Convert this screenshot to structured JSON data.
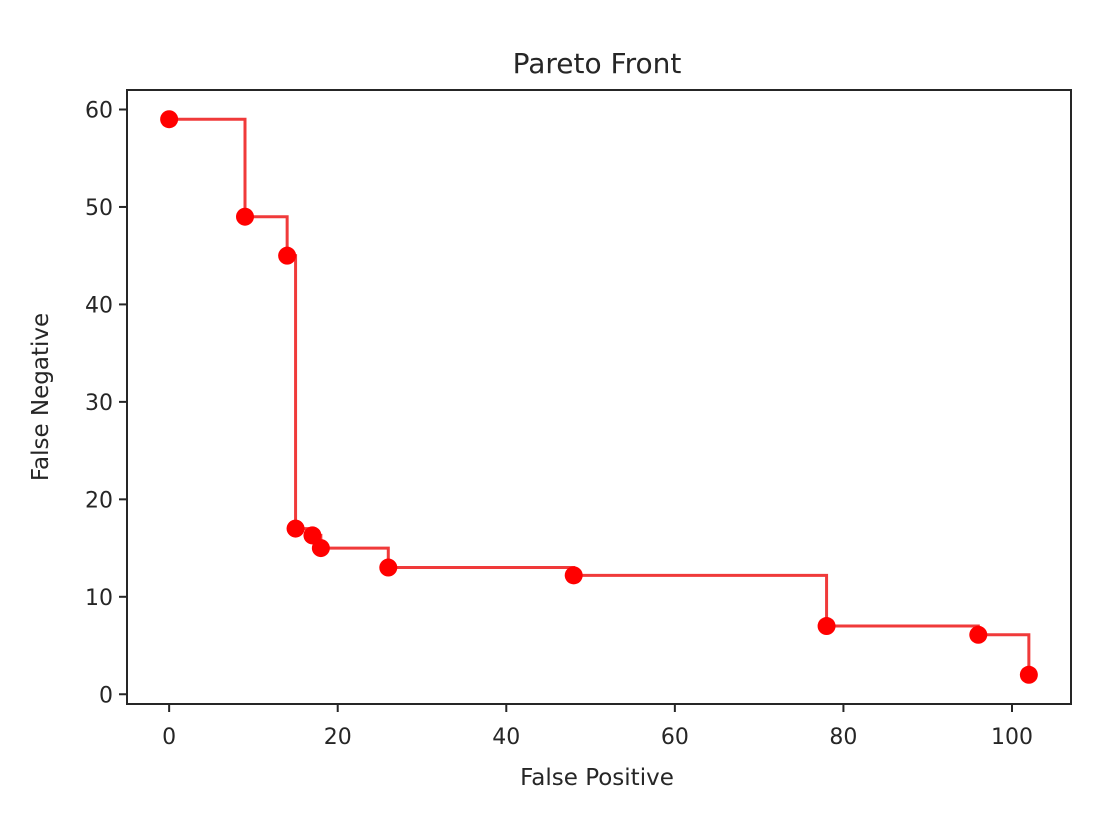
{
  "chart_data": {
    "type": "line",
    "title": "Pareto Front",
    "xlabel": "False Positive",
    "ylabel": "False Negative",
    "xlim": [
      -5,
      107
    ],
    "ylim": [
      -1,
      62
    ],
    "x_ticks": [
      0,
      20,
      40,
      60,
      80,
      100
    ],
    "y_ticks": [
      0,
      10,
      20,
      30,
      40,
      50,
      60
    ],
    "grid": false,
    "legend": null,
    "line_style": "step-post",
    "colors": {
      "series": "#ff0000",
      "line": "#f03a3a",
      "axes": "#262626"
    },
    "series": [
      {
        "points": [
          {
            "x": 0,
            "y": 59
          },
          {
            "x": 9,
            "y": 49
          },
          {
            "x": 14,
            "y": 45
          },
          {
            "x": 15,
            "y": 17
          },
          {
            "x": 17,
            "y": 16.3
          },
          {
            "x": 18,
            "y": 15
          },
          {
            "x": 26,
            "y": 13
          },
          {
            "x": 48,
            "y": 12.2
          },
          {
            "x": 78,
            "y": 7
          },
          {
            "x": 96,
            "y": 6.1
          },
          {
            "x": 102,
            "y": 2
          }
        ]
      }
    ]
  }
}
